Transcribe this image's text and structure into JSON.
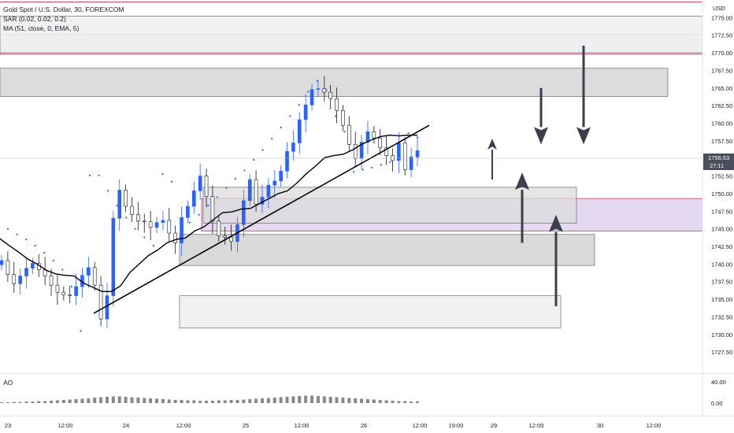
{
  "header": {
    "title": "Gold Spot / U.S. Dollar, 30, FOREXCOM",
    "indicator_1": "SAR (0.02, 0.02, 0.2)",
    "indicator_2": "MA (51, close, 0, EMA, 5)"
  },
  "currency": "USD",
  "current_price": "1756.53",
  "countdown": "27:11",
  "ao_panel": {
    "label": "AO",
    "ticks": [
      "40.00",
      "0.00"
    ]
  },
  "chart_data": {
    "type": "candlestick",
    "title": "Gold Spot / U.S. Dollar, 30, FOREXCOM",
    "ylim": [
      1724.5,
      1777.5
    ],
    "y_ticks": [
      "1775.00",
      "1772.50",
      "1770.00",
      "1767.50",
      "1765.00",
      "1762.50",
      "1760.00",
      "1757.50",
      "1755.00",
      "1752.50",
      "1750.00",
      "1747.50",
      "1745.00",
      "1742.50",
      "1740.00",
      "1737.50",
      "1735.00",
      "1732.50",
      "1730.00",
      "1727.50"
    ],
    "x_ticks": [
      "23",
      "12:00",
      "24",
      "12:00",
      "25",
      "12:00",
      "26",
      "12:00",
      "19:00",
      "29",
      "12:00",
      "30",
      "12:00"
    ],
    "close_path": [
      1740.5,
      1738.5,
      1737.2,
      1738.3,
      1739.4,
      1740.1,
      1739.2,
      1738.3,
      1737.0,
      1736.0,
      1735.6,
      1735.5,
      1736.8,
      1738.4,
      1739.5,
      1737.0,
      1732.2,
      1735.5,
      1746.5,
      1750.5,
      1748.2,
      1747.0,
      1746.1,
      1746.0,
      1745.2,
      1745.9,
      1746.2,
      1744.4,
      1743.0,
      1746.6,
      1748.2,
      1750.4,
      1752.5,
      1749.6,
      1746.1,
      1744.0,
      1743.8,
      1743.2,
      1745.6,
      1749.0,
      1752.0,
      1748.5,
      1749.5,
      1751.2,
      1751.8,
      1753.2,
      1756.0,
      1757.2,
      1760.5,
      1762.6,
      1764.8,
      1764.9,
      1764.4,
      1763.5,
      1761.8,
      1759.7,
      1757.0,
      1755.0,
      1757.3,
      1758.8,
      1757.9,
      1756.5,
      1755.4,
      1754.7,
      1757.2,
      1753.4,
      1755.2,
      1756.1
    ],
    "sar_path": [
      1745.0,
      1744.2,
      1743.5,
      1742.6,
      1741.6,
      1740.5,
      1739.2,
      1736.8,
      1730.5,
      1752.6,
      1752.6,
      1750.4,
      1748.3,
      1746.6,
      1745.0,
      1743.8,
      1742.6,
      1752.8,
      1751.7,
      1745.1,
      1745.9,
      1747.0,
      1748.3,
      1749.5,
      1750.8,
      1752.1,
      1753.3,
      1754.8,
      1756.2,
      1757.8,
      1759.4,
      1761.0,
      1762.6,
      1764.5,
      1766.0,
      1764.7,
      1761.0,
      1758.8,
      1753.1,
      1753.4,
      1753.7,
      1754.1,
      1754.5,
      1755.0,
      1758.6,
      1758.0
    ],
    "ema_path": [
      1743.6,
      1742.6,
      1741.7,
      1740.7,
      1740.0,
      1739.1,
      1738.6,
      1738.4,
      1738.3,
      1737.3,
      1736.7,
      1736.1,
      1736.1,
      1736.9,
      1738.8,
      1740.0,
      1741.2,
      1742.0,
      1743.0,
      1743.5,
      1743.7,
      1744.7,
      1745.3,
      1746.3,
      1747.3,
      1747.4,
      1747.8,
      1747.9,
      1748.6,
      1749.3,
      1750.0,
      1750.4,
      1751.5,
      1752.8,
      1753.9,
      1755.1,
      1755.4,
      1755.6,
      1756.2,
      1757.0,
      1757.6,
      1758.1,
      1758.3,
      1758.2,
      1758.3,
      1758.3
    ],
    "trendlines": [
      {
        "from": [
          "23 (near 21:00)",
          1733.0
        ],
        "to": [
          "26 (near 12:00)",
          1759.7
        ]
      }
    ],
    "zones": [
      {
        "name": "supply-top",
        "y": [
          1769.8,
          1772.6
        ],
        "color": "#e1d5f0"
      },
      {
        "name": "grey-top",
        "y": [
          1770.0,
          1775.2
        ],
        "color": "#f0f0f0"
      },
      {
        "name": "resistance",
        "y": [
          1763.8,
          1767.8
        ],
        "color": "#d8d8d8"
      },
      {
        "name": "demand-mid",
        "y": [
          1744.7,
          1749.3
        ],
        "color": "#e1d5f0"
      },
      {
        "name": "box-upper",
        "y": [
          1745.8,
          1750.9
        ],
        "color": "#dcdcdc"
      },
      {
        "name": "box-lower",
        "y": [
          1739.8,
          1744.2
        ],
        "color": "#d6d6d6"
      },
      {
        "name": "box-bottom",
        "y": [
          1730.9,
          1735.5
        ],
        "color": "#f0f0f0"
      }
    ],
    "arrows": [
      {
        "direction": "up",
        "from": 1752.0,
        "to": 1757.8
      },
      {
        "direction": "down",
        "from": 1765.0,
        "to": 1757.0
      },
      {
        "direction": "down",
        "from": 1771.0,
        "to": 1757.0
      },
      {
        "direction": "up",
        "from": 1743.0,
        "to": 1753.0
      },
      {
        "direction": "up",
        "from": 1734.0,
        "to": 1747.0
      }
    ],
    "ao_values": [
      2,
      2,
      3,
      3,
      4,
      4,
      5,
      5,
      6,
      7,
      8,
      9,
      10,
      11,
      12,
      14,
      15,
      16,
      17,
      17,
      16,
      15,
      14,
      13,
      12,
      11,
      10,
      9,
      8,
      8,
      7,
      7,
      6,
      6,
      6,
      7,
      7,
      8,
      8,
      9,
      10,
      11,
      12,
      13,
      14,
      15,
      16,
      17,
      18,
      19,
      19,
      18,
      17,
      16,
      15,
      14,
      13,
      12,
      11,
      10,
      9,
      8,
      7,
      6,
      5,
      5,
      4,
      4
    ]
  }
}
